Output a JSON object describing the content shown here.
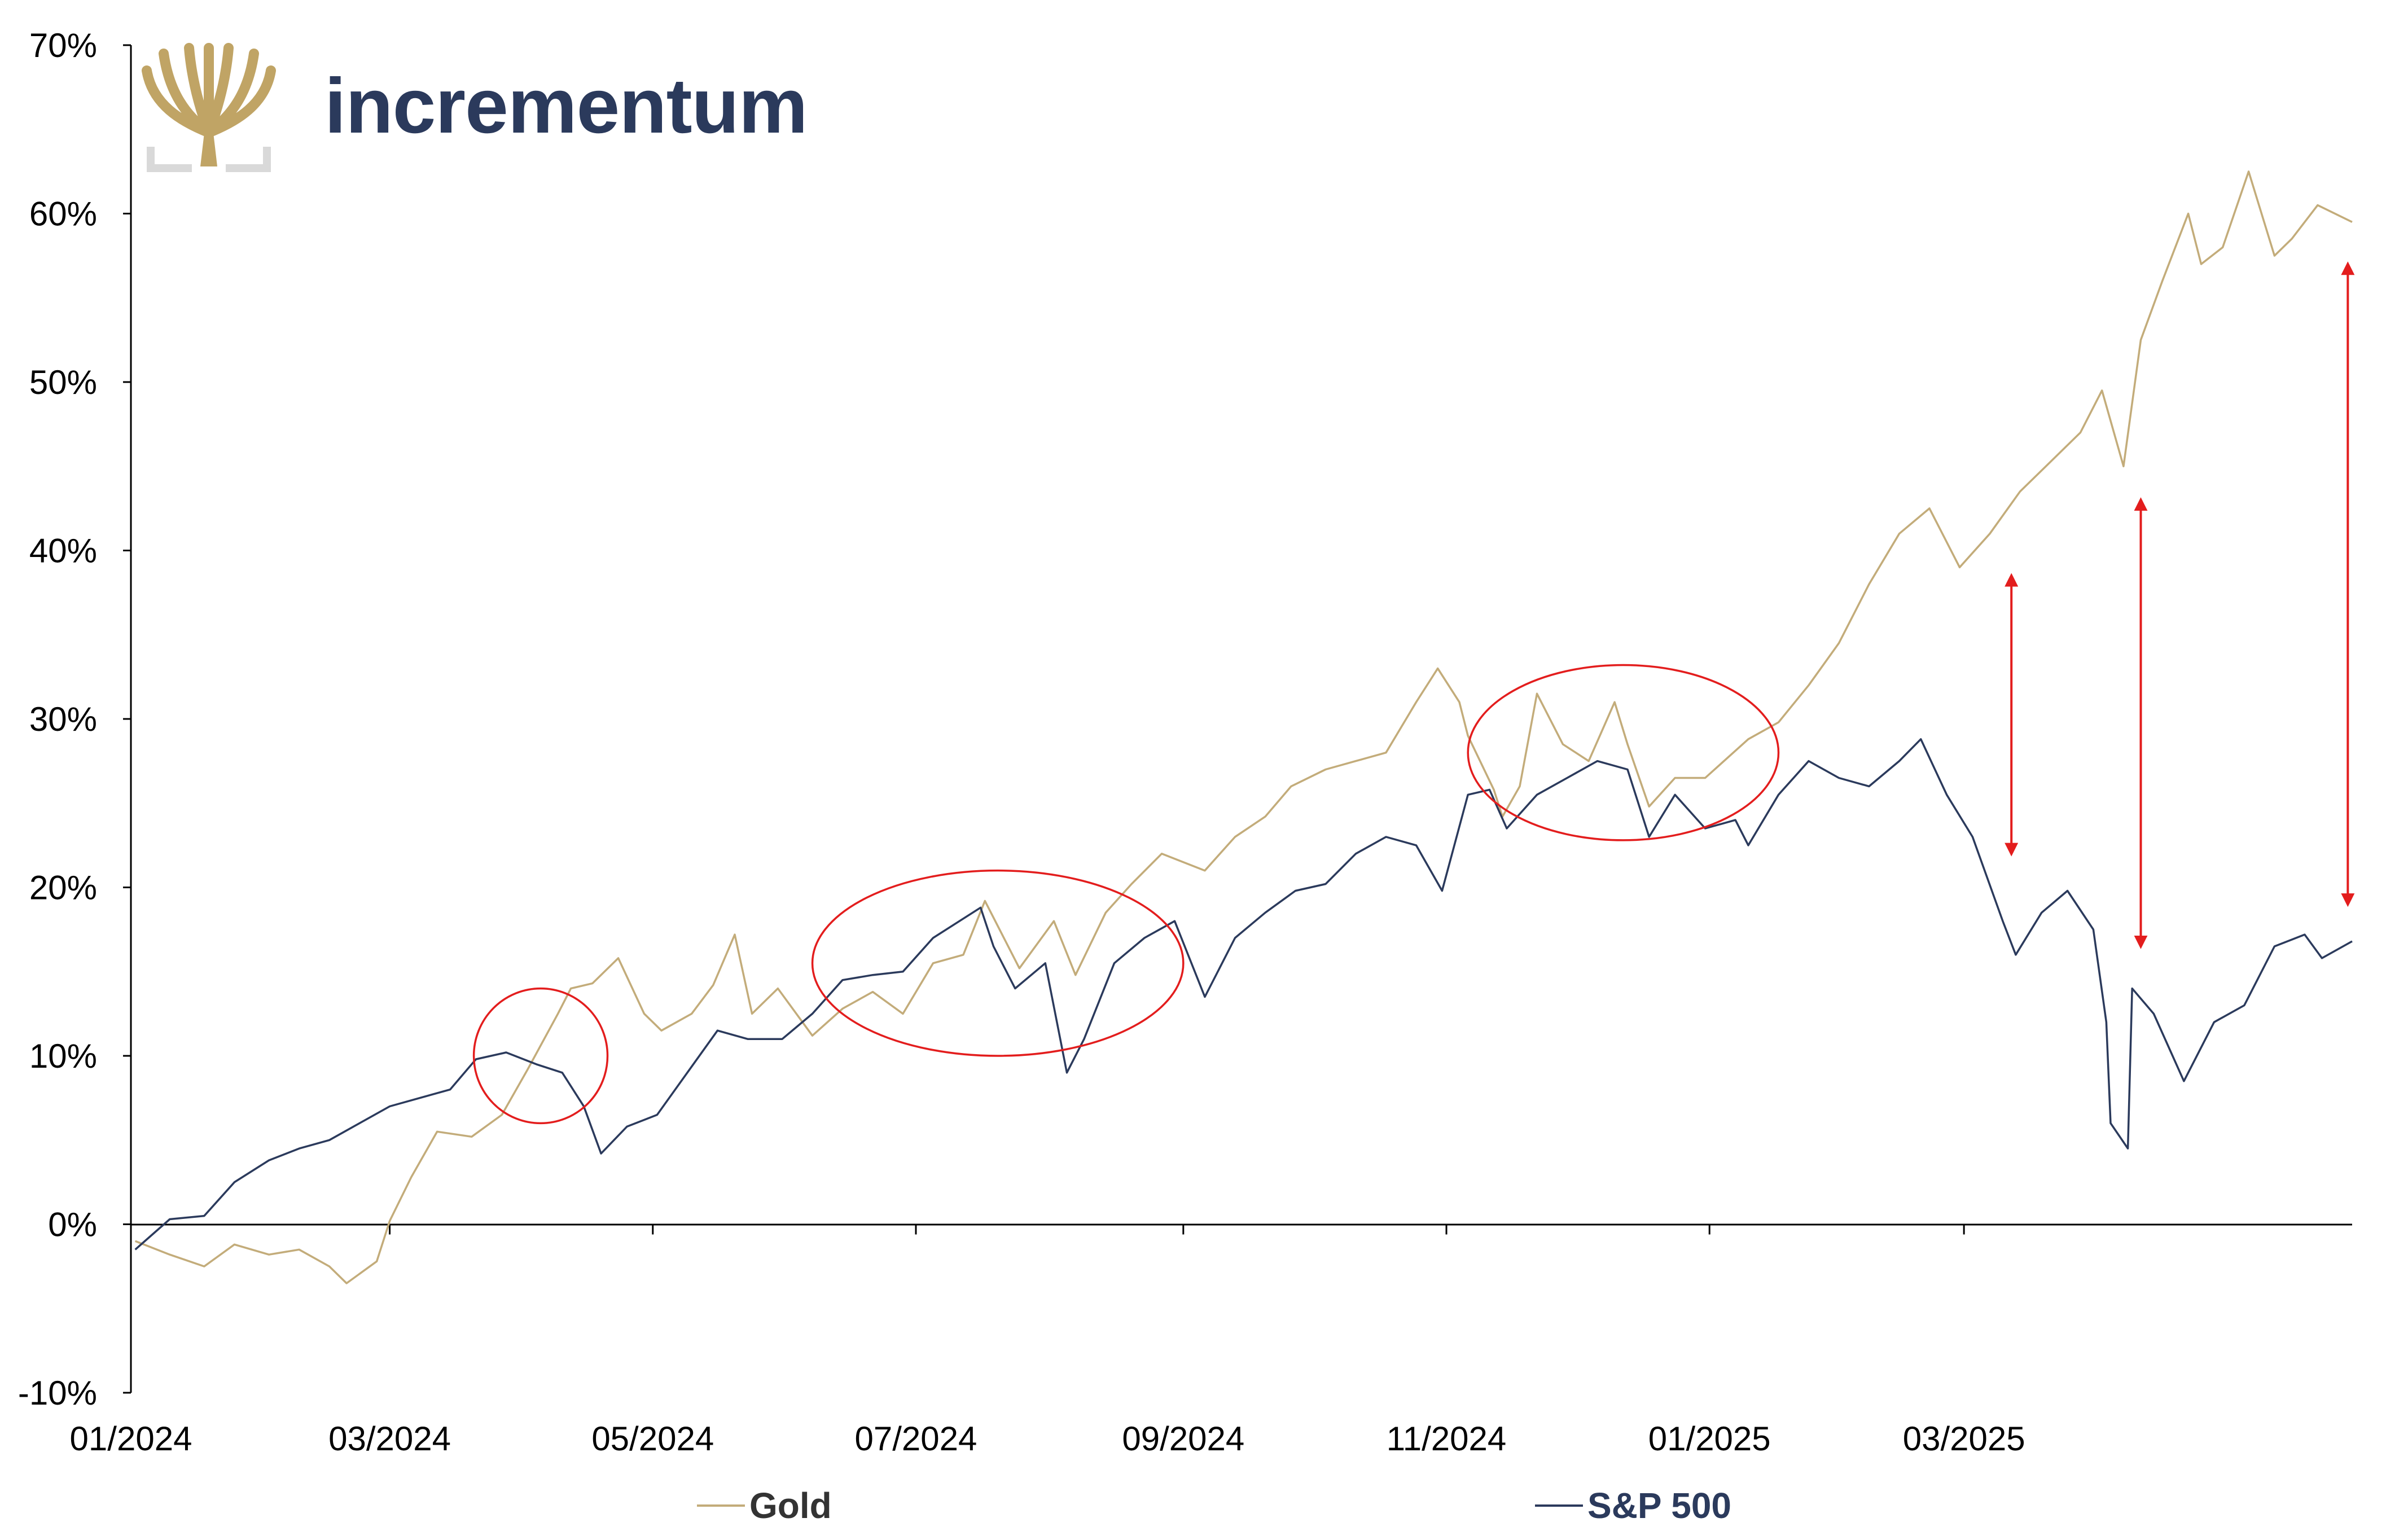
{
  "brand": {
    "name": "incrementum",
    "color": "#2b3a5c",
    "logo_icon": "tree-logo-icon",
    "logo_color": "#c0a465"
  },
  "legend": [
    {
      "label": "Gold",
      "color": "#c3ac7a"
    },
    {
      "label": "S&P 500",
      "color": "#2b3a5c"
    }
  ],
  "annotation_color": "#e31d1d",
  "chart_data": {
    "type": "line",
    "title": "",
    "xlabel": "",
    "ylabel": "",
    "x_ticks": [
      "01/2024",
      "03/2024",
      "05/2024",
      "07/2024",
      "09/2024",
      "11/2024",
      "01/2025",
      "03/2025"
    ],
    "y_ticks": [
      "-10%",
      "0%",
      "10%",
      "20%",
      "30%",
      "40%",
      "50%",
      "60%",
      "70%"
    ],
    "ylim": [
      -10,
      70
    ],
    "xlim": [
      "2024-01-01",
      "2025-05-30"
    ],
    "grid": false,
    "legend_position": "bottom",
    "series": [
      {
        "name": "Gold",
        "points": [
          [
            "2024-01-02",
            -1.0
          ],
          [
            "2024-01-10",
            -1.8
          ],
          [
            "2024-01-18",
            -2.5
          ],
          [
            "2024-01-25",
            -1.2
          ],
          [
            "2024-02-02",
            -1.8
          ],
          [
            "2024-02-09",
            -1.5
          ],
          [
            "2024-02-16",
            -2.5
          ],
          [
            "2024-02-20",
            -3.5
          ],
          [
            "2024-02-27",
            -2.2
          ],
          [
            "2024-03-01",
            0.2
          ],
          [
            "2024-03-06",
            2.8
          ],
          [
            "2024-03-12",
            5.5
          ],
          [
            "2024-03-20",
            5.2
          ],
          [
            "2024-03-27",
            6.5
          ],
          [
            "2024-04-02",
            9.2
          ],
          [
            "2024-04-09",
            12.5
          ],
          [
            "2024-04-12",
            14.0
          ],
          [
            "2024-04-17",
            14.3
          ],
          [
            "2024-04-23",
            15.8
          ],
          [
            "2024-04-29",
            12.5
          ],
          [
            "2024-05-03",
            11.5
          ],
          [
            "2024-05-10",
            12.5
          ],
          [
            "2024-05-15",
            14.2
          ],
          [
            "2024-05-20",
            17.2
          ],
          [
            "2024-05-24",
            12.5
          ],
          [
            "2024-05-30",
            14.0
          ],
          [
            "2024-06-07",
            11.2
          ],
          [
            "2024-06-14",
            12.8
          ],
          [
            "2024-06-21",
            13.8
          ],
          [
            "2024-06-28",
            12.5
          ],
          [
            "2024-07-05",
            15.5
          ],
          [
            "2024-07-12",
            16.0
          ],
          [
            "2024-07-17",
            19.2
          ],
          [
            "2024-07-25",
            15.2
          ],
          [
            "2024-08-02",
            18.0
          ],
          [
            "2024-08-07",
            14.8
          ],
          [
            "2024-08-14",
            18.5
          ],
          [
            "2024-08-20",
            20.2
          ],
          [
            "2024-08-27",
            22.0
          ],
          [
            "2024-09-06",
            21.0
          ],
          [
            "2024-09-13",
            23.0
          ],
          [
            "2024-09-20",
            24.2
          ],
          [
            "2024-09-26",
            26.0
          ],
          [
            "2024-10-04",
            27.0
          ],
          [
            "2024-10-11",
            27.5
          ],
          [
            "2024-10-18",
            28.0
          ],
          [
            "2024-10-25",
            31.0
          ],
          [
            "2024-10-30",
            33.0
          ],
          [
            "2024-11-04",
            31.0
          ],
          [
            "2024-11-06",
            29.0
          ],
          [
            "2024-11-12",
            25.8
          ],
          [
            "2024-11-14",
            24.2
          ],
          [
            "2024-11-18",
            26.0
          ],
          [
            "2024-11-22",
            31.5
          ],
          [
            "2024-11-28",
            28.5
          ],
          [
            "2024-12-04",
            27.5
          ],
          [
            "2024-12-10",
            31.0
          ],
          [
            "2024-12-13",
            28.5
          ],
          [
            "2024-12-18",
            24.8
          ],
          [
            "2024-12-24",
            26.5
          ],
          [
            "2024-12-31",
            26.5
          ],
          [
            "2025-01-10",
            28.8
          ],
          [
            "2025-01-17",
            29.8
          ],
          [
            "2025-01-24",
            32.0
          ],
          [
            "2025-01-31",
            34.5
          ],
          [
            "2025-02-07",
            38.0
          ],
          [
            "2025-02-14",
            41.0
          ],
          [
            "2025-02-21",
            42.5
          ],
          [
            "2025-02-28",
            39.0
          ],
          [
            "2025-03-07",
            41.0
          ],
          [
            "2025-03-14",
            43.5
          ],
          [
            "2025-03-20",
            45.0
          ],
          [
            "2025-03-28",
            47.0
          ],
          [
            "2025-04-02",
            49.5
          ],
          [
            "2025-04-07",
            45.0
          ],
          [
            "2025-04-11",
            52.5
          ],
          [
            "2025-04-16",
            56.0
          ],
          [
            "2025-04-22",
            60.0
          ],
          [
            "2025-04-25",
            57.0
          ],
          [
            "2025-04-30",
            58.0
          ],
          [
            "2025-05-06",
            62.5
          ],
          [
            "2025-05-12",
            57.5
          ],
          [
            "2025-05-16",
            58.5
          ],
          [
            "2025-05-22",
            60.5
          ],
          [
            "2025-05-30",
            59.5
          ]
        ]
      },
      {
        "name": "S&P 500",
        "points": [
          [
            "2024-01-02",
            -1.5
          ],
          [
            "2024-01-10",
            0.3
          ],
          [
            "2024-01-18",
            0.5
          ],
          [
            "2024-01-25",
            2.5
          ],
          [
            "2024-02-02",
            3.8
          ],
          [
            "2024-02-09",
            4.5
          ],
          [
            "2024-02-16",
            5.0
          ],
          [
            "2024-02-23",
            6.0
          ],
          [
            "2024-03-01",
            7.0
          ],
          [
            "2024-03-08",
            7.5
          ],
          [
            "2024-03-15",
            8.0
          ],
          [
            "2024-03-21",
            9.8
          ],
          [
            "2024-03-28",
            10.2
          ],
          [
            "2024-04-04",
            9.5
          ],
          [
            "2024-04-10",
            9.0
          ],
          [
            "2024-04-15",
            7.0
          ],
          [
            "2024-04-19",
            4.2
          ],
          [
            "2024-04-25",
            5.8
          ],
          [
            "2024-05-02",
            6.5
          ],
          [
            "2024-05-09",
            9.0
          ],
          [
            "2024-05-16",
            11.5
          ],
          [
            "2024-05-23",
            11.0
          ],
          [
            "2024-05-31",
            11.0
          ],
          [
            "2024-06-07",
            12.5
          ],
          [
            "2024-06-14",
            14.5
          ],
          [
            "2024-06-21",
            14.8
          ],
          [
            "2024-06-28",
            15.0
          ],
          [
            "2024-07-05",
            17.0
          ],
          [
            "2024-07-16",
            18.8
          ],
          [
            "2024-07-19",
            16.5
          ],
          [
            "2024-07-24",
            14.0
          ],
          [
            "2024-07-31",
            15.5
          ],
          [
            "2024-08-05",
            9.0
          ],
          [
            "2024-08-09",
            11.0
          ],
          [
            "2024-08-16",
            15.5
          ],
          [
            "2024-08-23",
            17.0
          ],
          [
            "2024-08-30",
            18.0
          ],
          [
            "2024-09-06",
            13.5
          ],
          [
            "2024-09-13",
            17.0
          ],
          [
            "2024-09-20",
            18.5
          ],
          [
            "2024-09-27",
            19.8
          ],
          [
            "2024-10-04",
            20.2
          ],
          [
            "2024-10-11",
            22.0
          ],
          [
            "2024-10-18",
            23.0
          ],
          [
            "2024-10-25",
            22.5
          ],
          [
            "2024-10-31",
            19.8
          ],
          [
            "2024-11-06",
            25.5
          ],
          [
            "2024-11-11",
            25.8
          ],
          [
            "2024-11-15",
            23.5
          ],
          [
            "2024-11-22",
            25.5
          ],
          [
            "2024-11-29",
            26.5
          ],
          [
            "2024-12-06",
            27.5
          ],
          [
            "2024-12-13",
            27.0
          ],
          [
            "2024-12-18",
            23.0
          ],
          [
            "2024-12-24",
            25.5
          ],
          [
            "2024-12-31",
            23.5
          ],
          [
            "2025-01-07",
            24.0
          ],
          [
            "2025-01-10",
            22.5
          ],
          [
            "2025-01-17",
            25.5
          ],
          [
            "2025-01-24",
            27.5
          ],
          [
            "2025-01-31",
            26.5
          ],
          [
            "2025-02-07",
            26.0
          ],
          [
            "2025-02-14",
            27.5
          ],
          [
            "2025-02-19",
            28.8
          ],
          [
            "2025-02-25",
            25.5
          ],
          [
            "2025-03-03",
            23.0
          ],
          [
            "2025-03-10",
            18.0
          ],
          [
            "2025-03-13",
            16.0
          ],
          [
            "2025-03-19",
            18.5
          ],
          [
            "2025-03-25",
            19.8
          ],
          [
            "2025-03-31",
            17.5
          ],
          [
            "2025-04-03",
            12.0
          ],
          [
            "2025-04-04",
            6.0
          ],
          [
            "2025-04-08",
            4.5
          ],
          [
            "2025-04-09",
            14.0
          ],
          [
            "2025-04-14",
            12.5
          ],
          [
            "2025-04-21",
            8.5
          ],
          [
            "2025-04-28",
            12.0
          ],
          [
            "2025-05-05",
            13.0
          ],
          [
            "2025-05-12",
            16.5
          ],
          [
            "2025-05-19",
            17.2
          ],
          [
            "2025-05-23",
            15.8
          ],
          [
            "2025-05-30",
            16.8
          ]
        ]
      }
    ],
    "annotations": {
      "ellipses": [
        {
          "cx": "2024-04-05",
          "cy": 10.0,
          "rx_days": 15.5,
          "ry": 4.0
        },
        {
          "cx": "2024-07-20",
          "cy": 15.5,
          "rx_days": 43.0,
          "ry": 5.5
        },
        {
          "cx": "2024-12-12",
          "cy": 28.0,
          "rx_days": 36.0,
          "ry": 5.2
        }
      ],
      "double_arrows": [
        {
          "x": "2025-03-12",
          "y1": 22.0,
          "y2": 38.5
        },
        {
          "x": "2025-04-11",
          "y1": 16.5,
          "y2": 43.0
        },
        {
          "x": "2025-05-29",
          "y1": 19.0,
          "y2": 57.0
        }
      ]
    }
  }
}
